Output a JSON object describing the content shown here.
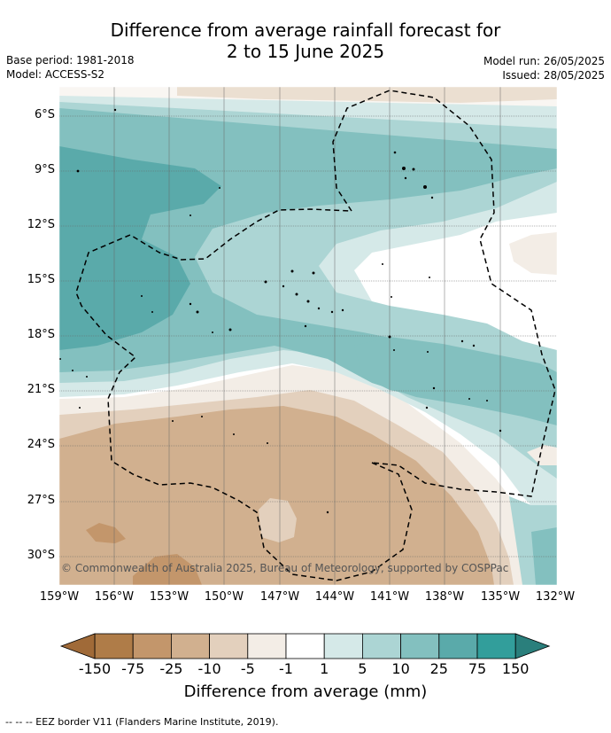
{
  "title_line1": "Difference from average rainfall forecast for",
  "title_line2": "2 to 15 June 2025",
  "base_period": "Base period: 1981-2018",
  "model": "Model: ACCESS-S2",
  "model_run": "Model run: 26/05/2025",
  "issued": "Issued: 28/05/2025",
  "copyright": "© Commonwealth of Australia 2025, Bureau of Meteorology, supported by COSPPac",
  "lat_labels": [
    "6°S",
    "9°S",
    "12°S",
    "15°S",
    "18°S",
    "21°S",
    "24°S",
    "27°S",
    "30°S"
  ],
  "lon_labels": [
    "159°W",
    "156°W",
    "153°W",
    "150°W",
    "147°W",
    "144°W",
    "141°W",
    "138°W",
    "135°W",
    "132°W"
  ],
  "colorbar": {
    "title": "Difference from average (mm)",
    "ticks": [
      "-150",
      "-75",
      "-25",
      "-10",
      "-5",
      "-1",
      "1",
      "5",
      "10",
      "25",
      "75",
      "150"
    ],
    "colors": [
      "#af7c48",
      "#c3966b",
      "#d1b08f",
      "#e3d0bd",
      "#f3ede6",
      "#ffffff",
      "#d5e9e8",
      "#acd5d4",
      "#83c0bf",
      "#5aaaaa",
      "#329e9b"
    ],
    "under_color": "#a06a38",
    "over_color": "#2a7f7c"
  },
  "footnote": "-- -- -- EEZ border V11 (Flanders Marine Institute, 2019)."
}
